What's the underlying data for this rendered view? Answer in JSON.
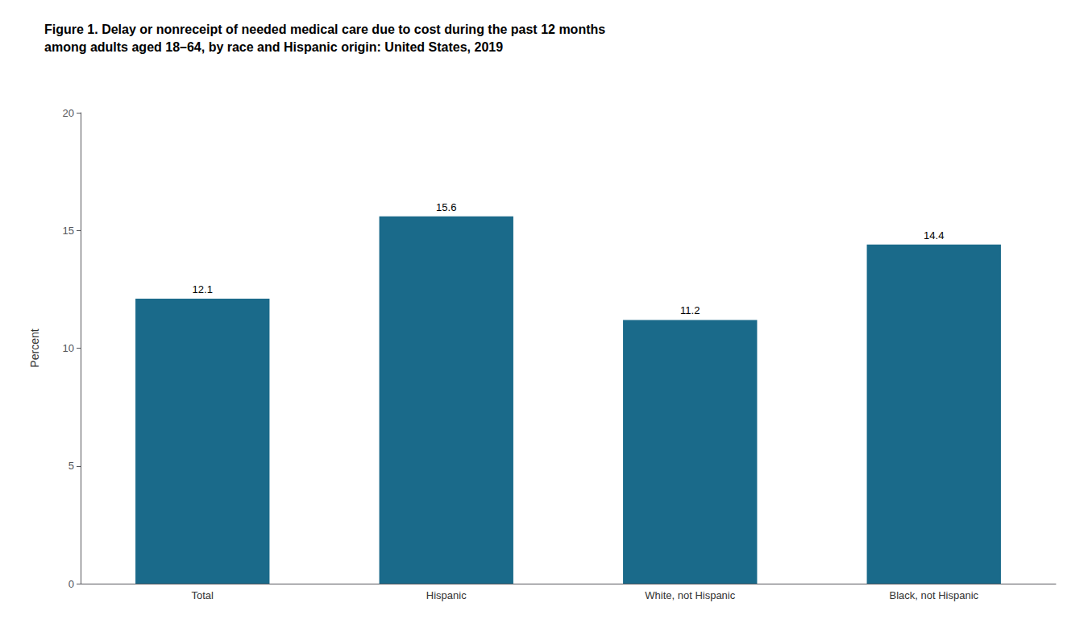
{
  "chart_data": {
    "type": "bar",
    "title": "Figure 1. Delay or nonreceipt of needed medical care due to cost during the past 12 months\namong adults aged 18–64, by race and Hispanic origin: United States, 2019",
    "categories": [
      "Total",
      "Hispanic",
      "White, not Hispanic",
      "Black, not Hispanic"
    ],
    "values": [
      12.1,
      15.6,
      11.2,
      14.4
    ],
    "color": "#1a6a8a",
    "ylabel": "Percent",
    "ylim": [
      0,
      20
    ],
    "yticks": [
      0,
      5,
      10,
      15,
      20
    ],
    "data_labels": true,
    "grid": false
  }
}
